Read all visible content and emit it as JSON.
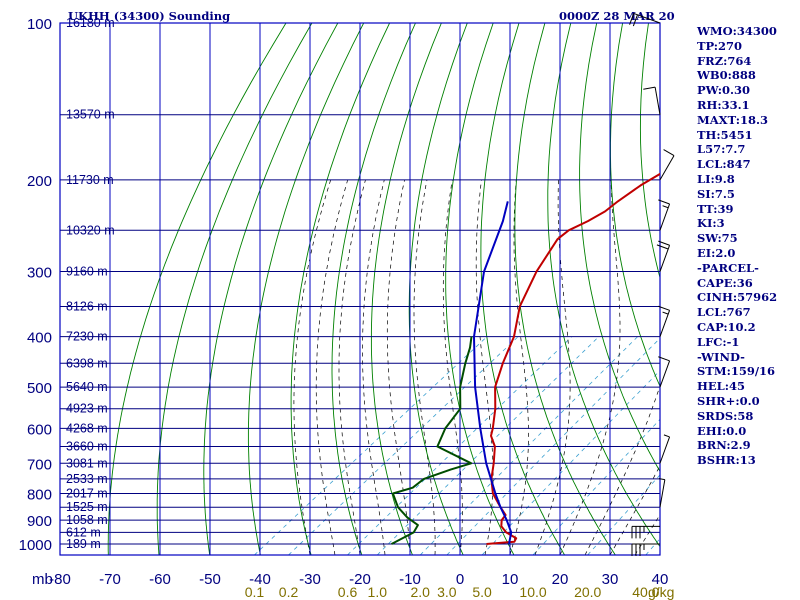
{
  "chart_data": {
    "type": "skew-t sounding",
    "title": "UKHH (34300) Sounding",
    "time_label": "0000Z 28 MAR 20",
    "pressure_unit_label": "mb",
    "pressure_ticks": [
      "100",
      "200",
      "300",
      "400",
      "500",
      "600",
      "700",
      "800",
      "900",
      "1000"
    ],
    "pressure_values": [
      100,
      200,
      300,
      400,
      500,
      600,
      700,
      800,
      900,
      1000
    ],
    "temperature_ticks": [
      "-80",
      "-70",
      "-60",
      "-50",
      "-40",
      "-30",
      "-20",
      "-10",
      "0",
      "10",
      "20",
      "30",
      "40"
    ],
    "temperature_values": [
      -80,
      -70,
      -60,
      -50,
      -40,
      -30,
      -20,
      -10,
      0,
      10,
      20,
      30,
      40
    ],
    "xlim": [
      -80,
      40
    ],
    "mixing_ratio_ticks": [
      "0.1",
      "0.2",
      "0.6",
      "1.0",
      "2.0",
      "3.0",
      "5.0",
      "10.0",
      "20.0",
      "40.0"
    ],
    "mixing_ratio_values": [
      0.1,
      0.2,
      0.6,
      1.0,
      2.0,
      3.0,
      5.0,
      10.0,
      20.0,
      40.0
    ],
    "mixing_ratio_unit": "g/kg",
    "height_labels": [
      {
        "p": 100,
        "text": "16180 m"
      },
      {
        "p": 150,
        "text": "13570 m"
      },
      {
        "p": 200,
        "text": "11730 m"
      },
      {
        "p": 250,
        "text": "10320 m"
      },
      {
        "p": 300,
        "text": "9160 m"
      },
      {
        "p": 350,
        "text": "8126 m"
      },
      {
        "p": 400,
        "text": "7230 m"
      },
      {
        "p": 450,
        "text": "6398 m"
      },
      {
        "p": 500,
        "text": "5640 m"
      },
      {
        "p": 550,
        "text": "4923 m"
      },
      {
        "p": 600,
        "text": "4268 m"
      },
      {
        "p": 650,
        "text": "3660 m"
      },
      {
        "p": 700,
        "text": "3081 m"
      },
      {
        "p": 750,
        "text": "2533 m"
      },
      {
        "p": 800,
        "text": "2017 m"
      },
      {
        "p": 850,
        "text": "1525 m"
      },
      {
        "p": 900,
        "text": "1058 m"
      },
      {
        "p": 950,
        "text": "612 m"
      },
      {
        "p": 1000,
        "text": "189 m"
      }
    ],
    "series": [
      {
        "key": "temperature",
        "color": "#c00000",
        "points": [
          [
            1000,
            2.5
          ],
          [
            990,
            7.5
          ],
          [
            975,
            7.0
          ],
          [
            950,
            3.5
          ],
          [
            925,
            1.0
          ],
          [
            900,
            -0.5
          ],
          [
            880,
            -1.0
          ],
          [
            850,
            -4.0
          ],
          [
            800,
            -9.0
          ],
          [
            750,
            -13.0
          ],
          [
            700,
            -16.5
          ],
          [
            650,
            -20.5
          ],
          [
            620,
            -24.0
          ],
          [
            600,
            -25.5
          ],
          [
            550,
            -30.0
          ],
          [
            500,
            -35.5
          ],
          [
            450,
            -40.0
          ],
          [
            400,
            -44.5
          ],
          [
            350,
            -51.0
          ],
          [
            300,
            -56.5
          ],
          [
            260,
            -60.5
          ],
          [
            250,
            -60.5
          ],
          [
            240,
            -59.0
          ],
          [
            230,
            -58.0
          ],
          [
            220,
            -58.0
          ],
          [
            205,
            -57.5
          ],
          [
            190,
            -56.0
          ],
          [
            150,
            -56.0
          ],
          [
            100,
            -56.0
          ]
        ]
      },
      {
        "key": "dewpoint",
        "color": "#004d00",
        "points": [
          [
            1000,
            -16.5
          ],
          [
            950,
            -15.0
          ],
          [
            920,
            -16.0
          ],
          [
            890,
            -20.0
          ],
          [
            850,
            -24.5
          ],
          [
            800,
            -29.0
          ],
          [
            780,
            -26.5
          ],
          [
            750,
            -26.5
          ],
          [
            720,
            -23.5
          ],
          [
            700,
            -21.0
          ],
          [
            650,
            -32.0
          ],
          [
            600,
            -35.0
          ],
          [
            550,
            -37.0
          ],
          [
            500,
            -42.5
          ],
          [
            450,
            -47.5
          ],
          [
            420,
            -50.5
          ],
          [
            400,
            -53.0
          ]
        ]
      },
      {
        "key": "parcel",
        "color": "#0000c0",
        "points": [
          [
            1000,
            7.0
          ],
          [
            950,
            4.5
          ],
          [
            900,
            0.5
          ],
          [
            850,
            -4.0
          ],
          [
            800,
            -8.5
          ],
          [
            767,
            -11.5
          ],
          [
            700,
            -18.0
          ],
          [
            600,
            -28.0
          ],
          [
            500,
            -39.5
          ],
          [
            400,
            -52.5
          ],
          [
            300,
            -67.0
          ],
          [
            240,
            -76.0
          ],
          [
            220,
            -80.0
          ]
        ]
      }
    ],
    "wind_barbs": [
      {
        "p": 1000,
        "dir": 270,
        "spd": 35
      },
      {
        "p": 925,
        "dir": 270,
        "spd": 35
      },
      {
        "p": 850,
        "dir": 10,
        "spd": 5
      },
      {
        "p": 700,
        "dir": 20,
        "spd": 5
      },
      {
        "p": 500,
        "dir": 20,
        "spd": 10
      },
      {
        "p": 400,
        "dir": 20,
        "spd": 15
      },
      {
        "p": 300,
        "dir": 20,
        "spd": 20
      },
      {
        "p": 250,
        "dir": 20,
        "spd": 15
      },
      {
        "p": 200,
        "dir": 30,
        "spd": 10
      },
      {
        "p": 150,
        "dir": 350,
        "spd": 10
      },
      {
        "p": 100,
        "dir": 290,
        "spd": 20
      }
    ],
    "grid": true
  },
  "indices": [
    "WMO:34300",
    "TP:270",
    "FRZ:764",
    "WB0:888",
    "PW:0.30",
    "RH:33.1",
    "MAXT:18.3",
    "TH:5451",
    "L57:7.7",
    "LCL:847",
    "LI:9.8",
    "SI:7.5",
    "TT:39",
    "KI:3",
    "SW:75",
    "EI:2.0",
    "-PARCEL-",
    "CAPE:36",
    "CINH:57962",
    "LCL:767",
    "CAP:10.2",
    "LFC:-1",
    "-WIND-",
    "STM:159/16",
    "HEL:45",
    "SHR+:0.0",
    "SRDS:58",
    "EHI:0.0",
    "BRN:2.9",
    "BSHR:13"
  ],
  "colors": {
    "frame": "#0000c0",
    "isotherm": "#0000c0",
    "isobar": "#000080",
    "dry_adiabat": "#008000",
    "moist_adiabat": "#000000",
    "mixing_ratio": "#3ca0d0",
    "text": "#000080",
    "mixing_label": "#807000"
  }
}
